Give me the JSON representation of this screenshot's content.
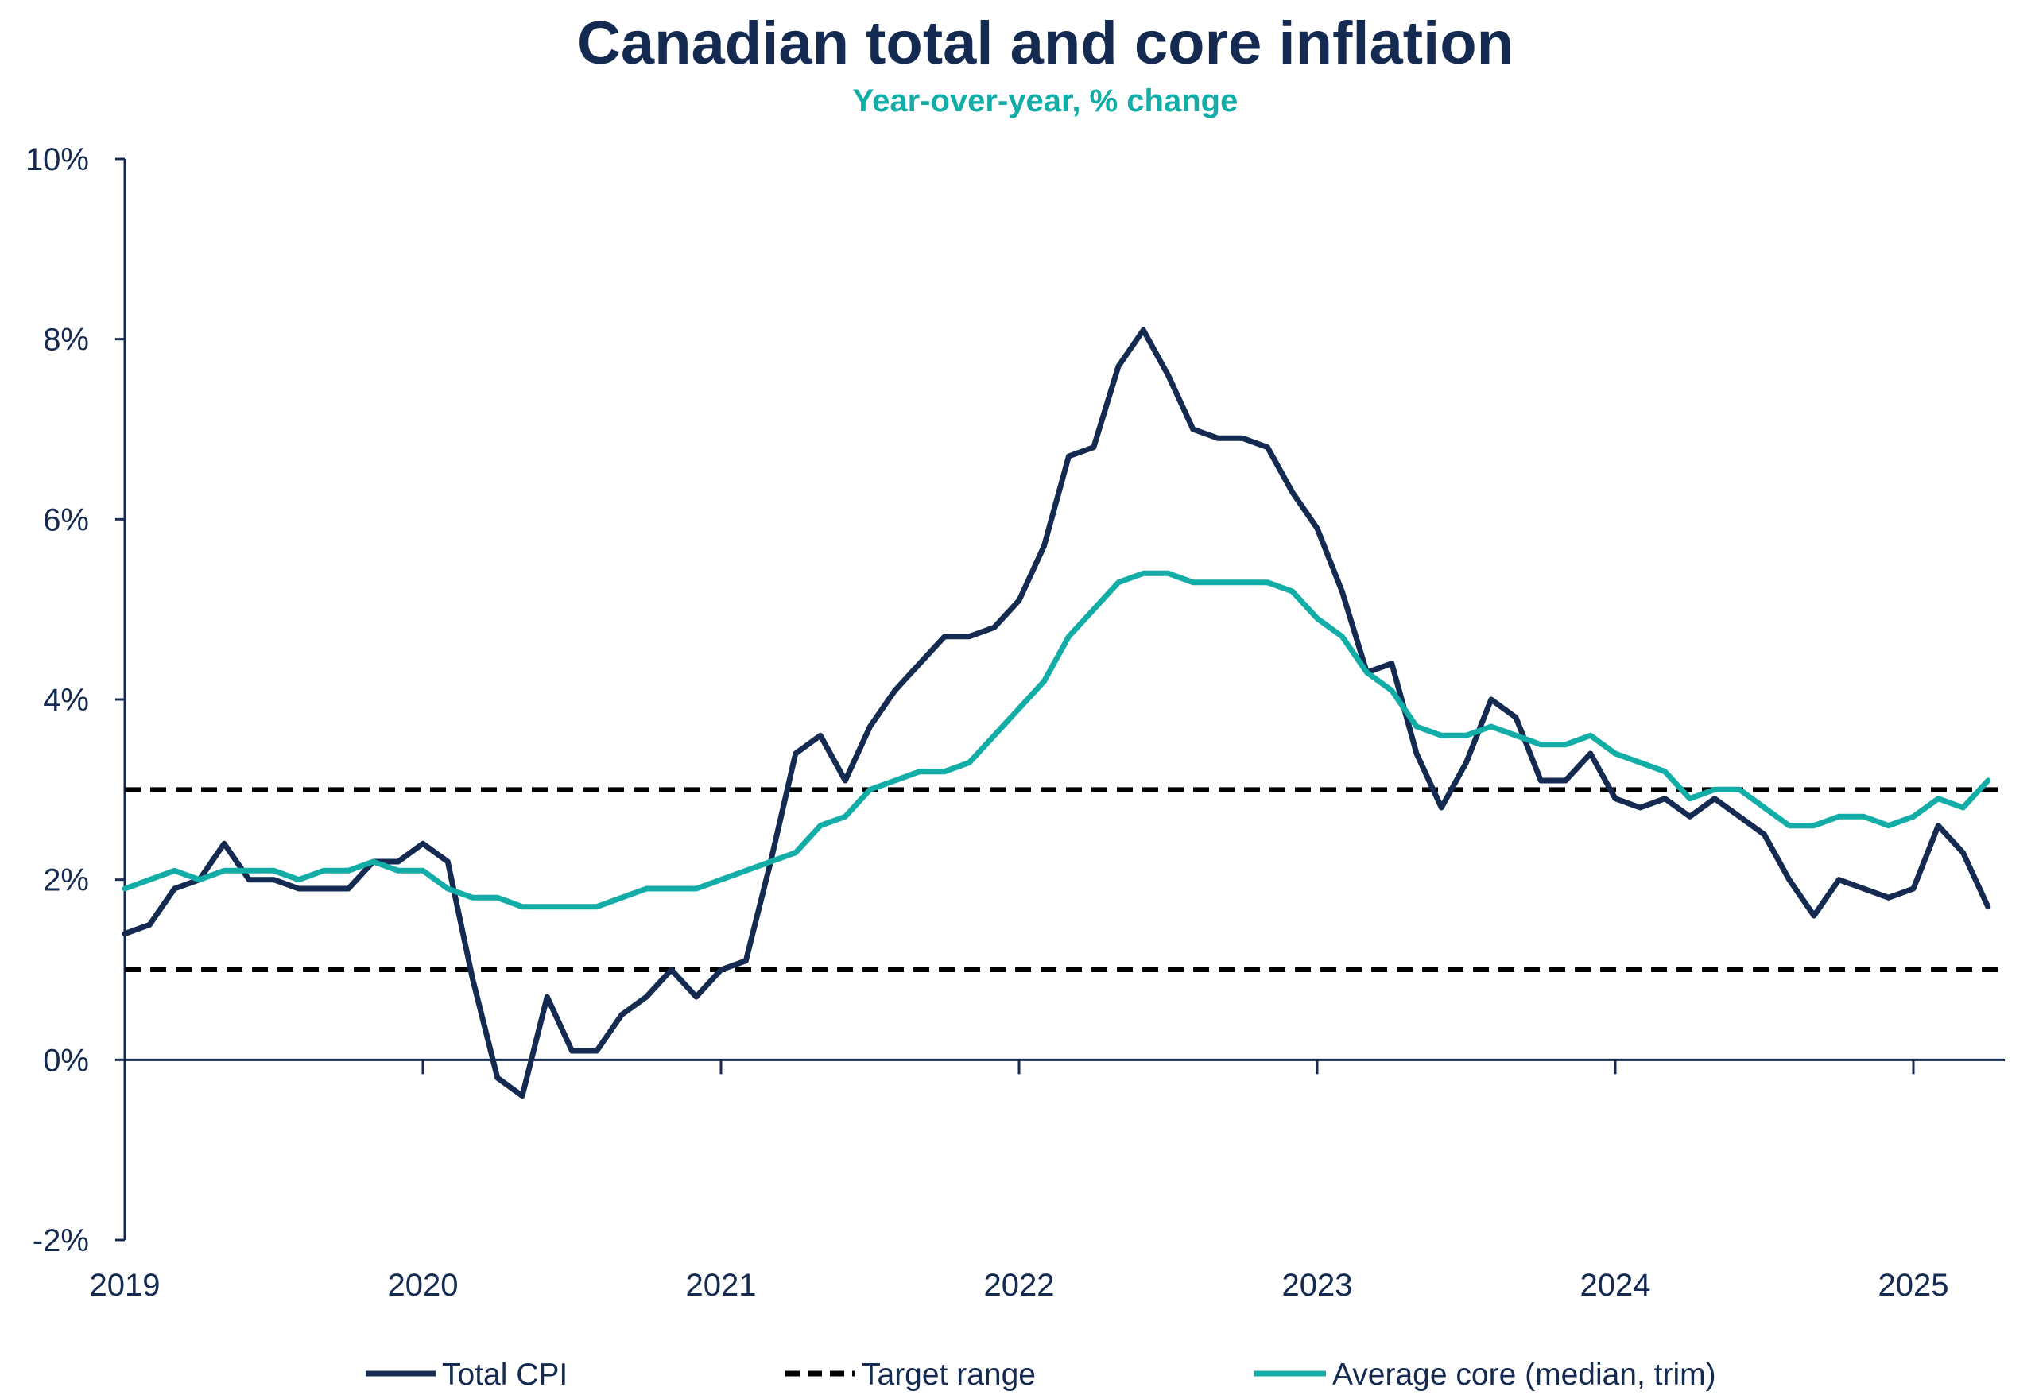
{
  "chart_data": {
    "type": "line",
    "title": "Canadian total and core inflation",
    "subtitle": "Year-over-year, % change",
    "x_start": "2019-01",
    "x_step": "month",
    "ylim": [
      -2,
      10
    ],
    "y_ticks": [
      -2,
      0,
      2,
      4,
      6,
      8,
      10
    ],
    "y_tick_labels": [
      "-2%",
      "0%",
      "2%",
      "4%",
      "6%",
      "8%",
      "10%"
    ],
    "x_tick_labels": [
      "2019",
      "2020",
      "2021",
      "2022",
      "2023",
      "2024",
      "2025"
    ],
    "legend_position": "bottom",
    "series": [
      {
        "name": "Total CPI",
        "color": "#142a50",
        "style": "solid",
        "values": [
          1.4,
          1.5,
          1.9,
          2.0,
          2.4,
          2.0,
          2.0,
          1.9,
          1.9,
          1.9,
          2.2,
          2.2,
          2.4,
          2.2,
          0.9,
          -0.2,
          -0.4,
          0.7,
          0.1,
          0.1,
          0.5,
          0.7,
          1.0,
          0.7,
          1.0,
          1.1,
          2.2,
          3.4,
          3.6,
          3.1,
          3.7,
          4.1,
          4.4,
          4.7,
          4.7,
          4.8,
          5.1,
          5.7,
          6.7,
          6.8,
          7.7,
          8.1,
          7.6,
          7.0,
          6.9,
          6.9,
          6.8,
          6.3,
          5.9,
          5.2,
          4.3,
          4.4,
          3.4,
          2.8,
          3.3,
          4.0,
          3.8,
          3.1,
          3.1,
          3.4,
          2.9,
          2.8,
          2.9,
          2.7,
          2.9,
          2.7,
          2.5,
          2.0,
          1.6,
          2.0,
          1.9,
          1.8,
          1.9,
          2.6,
          2.3,
          1.7
        ]
      },
      {
        "name": "Target range",
        "color": "#000000",
        "style": "dashed",
        "bounds": [
          1,
          3
        ]
      },
      {
        "name": "Average core (median, trim)",
        "color": "#13ada8",
        "style": "solid",
        "values": [
          1.9,
          2.0,
          2.1,
          2.0,
          2.1,
          2.1,
          2.1,
          2.0,
          2.1,
          2.1,
          2.2,
          2.1,
          2.1,
          1.9,
          1.8,
          1.8,
          1.7,
          1.7,
          1.7,
          1.7,
          1.8,
          1.9,
          1.9,
          1.9,
          2.0,
          2.1,
          2.2,
          2.3,
          2.6,
          2.7,
          3.0,
          3.1,
          3.2,
          3.2,
          3.3,
          3.6,
          3.9,
          4.2,
          4.7,
          5.0,
          5.3,
          5.4,
          5.4,
          5.3,
          5.3,
          5.3,
          5.3,
          5.2,
          4.9,
          4.7,
          4.3,
          4.1,
          3.7,
          3.6,
          3.6,
          3.7,
          3.6,
          3.5,
          3.5,
          3.6,
          3.4,
          3.3,
          3.2,
          2.9,
          3.0,
          3.0,
          2.8,
          2.6,
          2.6,
          2.7,
          2.7,
          2.6,
          2.7,
          2.9,
          2.8,
          3.1
        ]
      }
    ]
  }
}
